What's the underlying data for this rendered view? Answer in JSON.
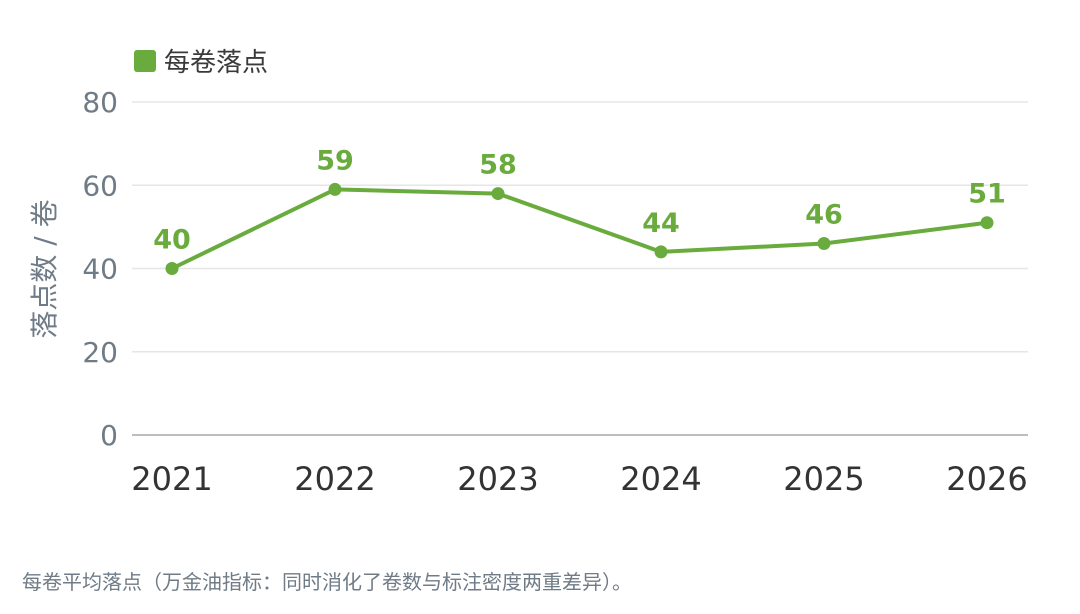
{
  "chart_data": {
    "type": "line",
    "categories": [
      "2021",
      "2022",
      "2023",
      "2024",
      "2025",
      "2026"
    ],
    "series": [
      {
        "name": "每卷落点",
        "values": [
          40,
          59,
          58,
          44,
          46,
          51
        ]
      }
    ],
    "ylabel": "落点数 / 卷",
    "xlabel": "",
    "ylim": [
      0,
      80
    ],
    "yticks": [
      "0",
      "20",
      "40",
      "60",
      "80"
    ],
    "grid": true,
    "legend_position": "top-left",
    "show_data_labels": true
  },
  "footnote": "每卷平均落点（万金油指标：同时消化了卷数与标注密度两重差异）。",
  "colors": {
    "series": "#6aab3e",
    "axis_text": "#6f7b86",
    "category_text": "#333333",
    "grid": "#e6e6e6",
    "baseline": "#bdbdbd"
  }
}
